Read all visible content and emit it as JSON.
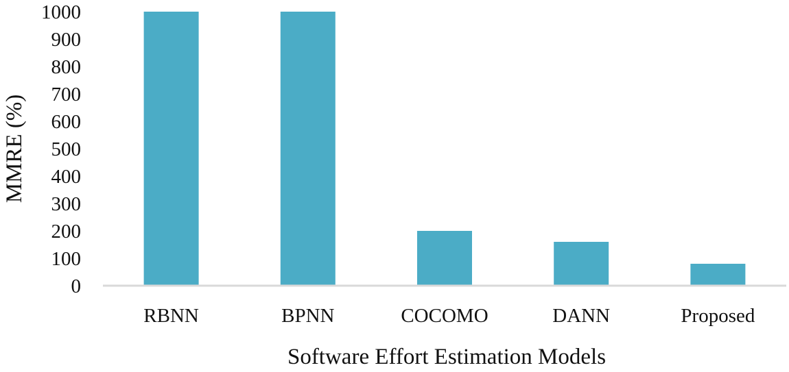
{
  "chart_data": {
    "type": "bar",
    "title": "",
    "xlabel": "Software Effort Estimation Models",
    "ylabel": "MMRE (%)",
    "categories": [
      "RBNN",
      "BPNN",
      "COCOMO",
      "DANN",
      "Proposed"
    ],
    "values": [
      1000,
      1000,
      200,
      160,
      80
    ],
    "ylim": [
      0,
      1000
    ],
    "yticks": [
      "0",
      "100",
      "200",
      "300",
      "400",
      "500",
      "600",
      "700",
      "800",
      "900",
      "1000"
    ],
    "grid": false,
    "legend": "none",
    "bar_color": "#4bacc6",
    "axis_color": "#d9d9d9"
  }
}
